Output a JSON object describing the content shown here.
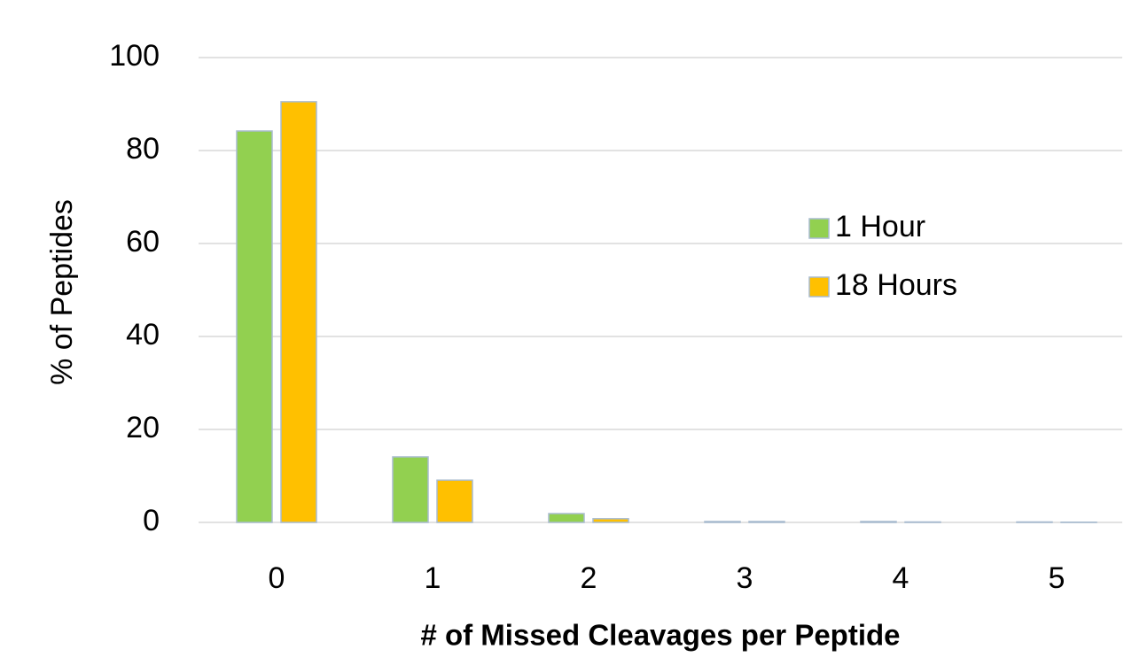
{
  "chart_data": {
    "type": "bar",
    "x_label": "# of Missed Cleavages per Peptide",
    "y_label": "% of Peptides",
    "categories": [
      "0",
      "1",
      "2",
      "3",
      "4",
      "5"
    ],
    "series": [
      {
        "name": "1 Hour",
        "color": "#92d050",
        "values": [
          84.2,
          14.1,
          1.9,
          0.2,
          0.2,
          0.1
        ]
      },
      {
        "name": "18 Hours",
        "color": "#ffc000",
        "values": [
          90.5,
          9.1,
          0.8,
          0.2,
          0.1,
          0.05
        ]
      }
    ],
    "ylim": [
      0,
      100
    ],
    "yticks": [
      0,
      20,
      40,
      60,
      80,
      100
    ],
    "grid": true,
    "legend": "right"
  }
}
